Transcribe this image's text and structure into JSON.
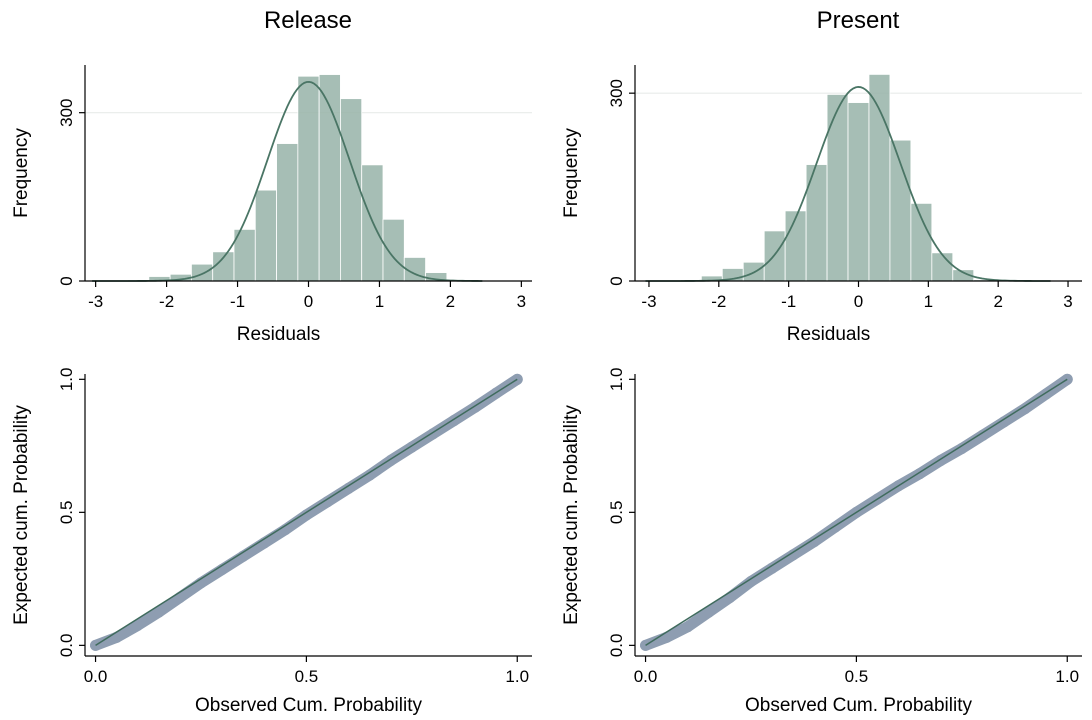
{
  "figure": {
    "titles": [
      "Release",
      "Present"
    ]
  },
  "colors": {
    "bar_fill": "#97b3a8",
    "density_curve": "#4a7565",
    "qq_points": "#8e9db1",
    "qq_reference_line": "#3f6b5d",
    "gridline": "#e8ecea"
  },
  "chart_data": [
    {
      "id": "release-hist",
      "type": "bar",
      "subtype": "histogram-with-normal-density",
      "title": "Release",
      "xlabel": "Residuals",
      "ylabel": "Frequency",
      "xlim": [
        -3.15,
        3.15
      ],
      "ylim": [
        0,
        385
      ],
      "xticks": [
        -3,
        -2,
        -1,
        0,
        1,
        2,
        3
      ],
      "xtick_labels": [
        "-3",
        "-2",
        "-1",
        "0",
        "1",
        "2",
        "3"
      ],
      "yticks": [
        0,
        300
      ],
      "ytick_labels": [
        "0",
        "300"
      ],
      "grid_y": [
        300
      ],
      "bin_width": 0.3,
      "bins": [
        {
          "x0": -2.85,
          "count": 1
        },
        {
          "x0": -2.55,
          "count": 2
        },
        {
          "x0": -2.25,
          "count": 8
        },
        {
          "x0": -1.95,
          "count": 12
        },
        {
          "x0": -1.65,
          "count": 30
        },
        {
          "x0": -1.35,
          "count": 52
        },
        {
          "x0": -1.05,
          "count": 92
        },
        {
          "x0": -0.75,
          "count": 162
        },
        {
          "x0": -0.45,
          "count": 245
        },
        {
          "x0": -0.15,
          "count": 365
        },
        {
          "x0": 0.15,
          "count": 368
        },
        {
          "x0": 0.45,
          "count": 325
        },
        {
          "x0": 0.75,
          "count": 207
        },
        {
          "x0": 1.05,
          "count": 110
        },
        {
          "x0": 1.35,
          "count": 42
        },
        {
          "x0": 1.65,
          "count": 15
        },
        {
          "x0": 1.95,
          "count": 2
        }
      ],
      "density": {
        "mean": 0.0,
        "sd": 0.58,
        "peak": 355,
        "x_range": [
          -3.05,
          2.45
        ]
      }
    },
    {
      "id": "present-hist",
      "type": "bar",
      "subtype": "histogram-with-normal-density",
      "title": "Present",
      "xlabel": "Residuals",
      "ylabel": "Frequency",
      "xlim": [
        -3.2,
        3.2
      ],
      "ylim": [
        0,
        345
      ],
      "xticks": [
        -3,
        -2,
        -1,
        0,
        1,
        2,
        3
      ],
      "xtick_labels": [
        "-3",
        "-2",
        "-1",
        "0",
        "1",
        "2",
        "3"
      ],
      "yticks": [
        0,
        300
      ],
      "ytick_labels": [
        "0",
        "300"
      ],
      "grid_y": [
        300
      ],
      "bin_width": 0.3,
      "bins": [
        {
          "x0": -2.55,
          "count": 2
        },
        {
          "x0": -2.25,
          "count": 8
        },
        {
          "x0": -1.95,
          "count": 20
        },
        {
          "x0": -1.65,
          "count": 30
        },
        {
          "x0": -1.35,
          "count": 80
        },
        {
          "x0": -1.05,
          "count": 112
        },
        {
          "x0": -0.75,
          "count": 186
        },
        {
          "x0": -0.45,
          "count": 298
        },
        {
          "x0": -0.15,
          "count": 285
        },
        {
          "x0": 0.15,
          "count": 330
        },
        {
          "x0": 0.45,
          "count": 225
        },
        {
          "x0": 0.75,
          "count": 124
        },
        {
          "x0": 1.05,
          "count": 45
        },
        {
          "x0": 1.35,
          "count": 18
        },
        {
          "x0": 1.65,
          "count": 2
        }
      ],
      "density": {
        "mean": 0.0,
        "sd": 0.6,
        "peak": 310,
        "x_range": [
          -3.05,
          2.75
        ]
      }
    },
    {
      "id": "release-pp",
      "type": "scatter",
      "subtype": "p-p-plot",
      "xlabel": "Observed Cum. Probability",
      "ylabel": "Expected cum. Probability",
      "xlim": [
        -0.025,
        1.035
      ],
      "ylim": [
        -0.04,
        1.02
      ],
      "xticks": [
        0,
        0.5,
        1
      ],
      "xtick_labels": [
        "0.0",
        "0.5",
        "1.0"
      ],
      "yticks": [
        0,
        0.5,
        1
      ],
      "ytick_labels": [
        "0.0",
        "0.5",
        "1.0"
      ],
      "points": [
        [
          0,
          0
        ],
        [
          0.05,
          0.03
        ],
        [
          0.1,
          0.075
        ],
        [
          0.15,
          0.125
        ],
        [
          0.2,
          0.18
        ],
        [
          0.25,
          0.235
        ],
        [
          0.3,
          0.285
        ],
        [
          0.35,
          0.335
        ],
        [
          0.4,
          0.385
        ],
        [
          0.45,
          0.435
        ],
        [
          0.5,
          0.49
        ],
        [
          0.55,
          0.54
        ],
        [
          0.6,
          0.59
        ],
        [
          0.65,
          0.64
        ],
        [
          0.7,
          0.695
        ],
        [
          0.75,
          0.745
        ],
        [
          0.8,
          0.795
        ],
        [
          0.85,
          0.845
        ],
        [
          0.9,
          0.895
        ],
        [
          0.95,
          0.948
        ],
        [
          1,
          1
        ]
      ],
      "reference_line": [
        [
          0,
          0
        ],
        [
          1,
          1
        ]
      ]
    },
    {
      "id": "present-pp",
      "type": "scatter",
      "subtype": "p-p-plot",
      "xlabel": "Observed Cum. Probability",
      "ylabel": "Expected cum. Probability",
      "xlim": [
        -0.025,
        1.035
      ],
      "ylim": [
        -0.04,
        1.02
      ],
      "xticks": [
        0,
        0.5,
        1
      ],
      "xtick_labels": [
        "0.0",
        "0.5",
        "1.0"
      ],
      "yticks": [
        0,
        0.5,
        1
      ],
      "ytick_labels": [
        "0.0",
        "0.5",
        "1.0"
      ],
      "points": [
        [
          0,
          0
        ],
        [
          0.05,
          0.03
        ],
        [
          0.1,
          0.07
        ],
        [
          0.15,
          0.125
        ],
        [
          0.2,
          0.18
        ],
        [
          0.25,
          0.24
        ],
        [
          0.3,
          0.29
        ],
        [
          0.35,
          0.34
        ],
        [
          0.4,
          0.39
        ],
        [
          0.45,
          0.445
        ],
        [
          0.5,
          0.5
        ],
        [
          0.55,
          0.55
        ],
        [
          0.6,
          0.6
        ],
        [
          0.65,
          0.645
        ],
        [
          0.7,
          0.695
        ],
        [
          0.75,
          0.74
        ],
        [
          0.8,
          0.79
        ],
        [
          0.85,
          0.84
        ],
        [
          0.9,
          0.89
        ],
        [
          0.95,
          0.945
        ],
        [
          1,
          1
        ]
      ],
      "reference_line": [
        [
          0,
          0
        ],
        [
          1,
          1
        ]
      ]
    }
  ]
}
